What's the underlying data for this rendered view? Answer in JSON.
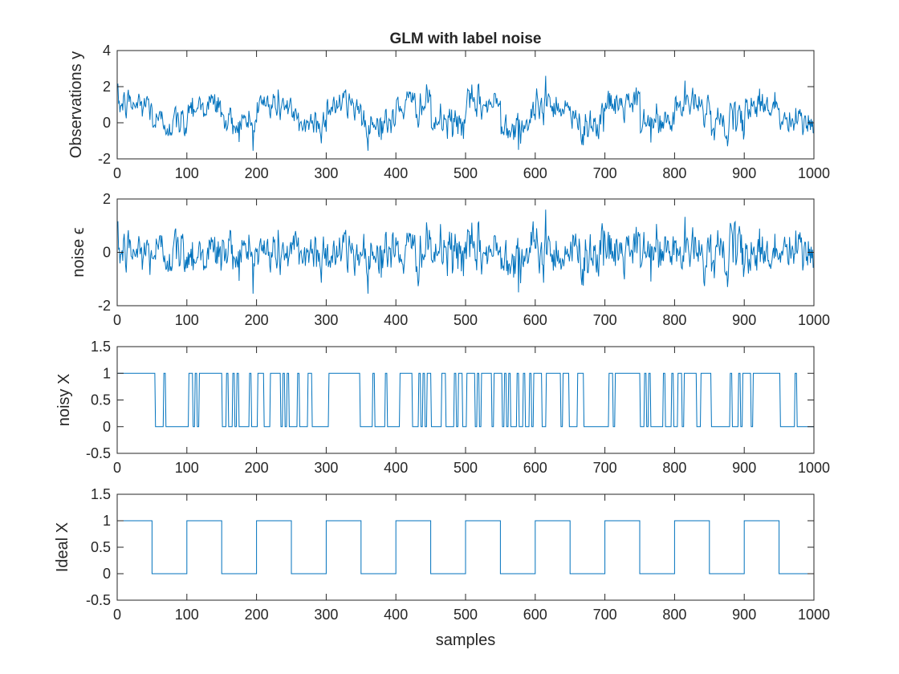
{
  "figure": {
    "title": "GLM with label noise",
    "line_color": "#0072BD"
  },
  "chart_data": [
    {
      "type": "line",
      "name": "observations",
      "ylabel": "Observations y",
      "xlabel": "",
      "xlim": [
        0,
        1000
      ],
      "ylim": [
        -2,
        4
      ],
      "xticks": [
        0,
        100,
        200,
        300,
        400,
        500,
        600,
        700,
        800,
        900,
        1000
      ],
      "xtick_labels": [
        "0",
        "100",
        "200",
        "300",
        "400",
        "500",
        "600",
        "700",
        "800",
        "900",
        "1000"
      ],
      "yticks": [
        -2,
        0,
        2,
        4
      ],
      "ytick_labels": [
        "-2",
        "0",
        "2",
        "4"
      ],
      "grid": false,
      "series": [
        {
          "name": "y",
          "description": "observed signal: ideal X plus noise, 1000 samples, values roughly between -1.5 and 2.6, slow waves of period 100 (peaks near 130, 320, 420, 620, 720, 820, 930)"
        }
      ]
    },
    {
      "type": "line",
      "name": "noise",
      "ylabel": "noise ϵ",
      "xlabel": "",
      "xlim": [
        0,
        1000
      ],
      "ylim": [
        -2,
        2
      ],
      "xticks": [
        0,
        100,
        200,
        300,
        400,
        500,
        600,
        700,
        800,
        900,
        1000
      ],
      "xtick_labels": [
        "0",
        "100",
        "200",
        "300",
        "400",
        "500",
        "600",
        "700",
        "800",
        "900",
        "1000"
      ],
      "yticks": [
        -2,
        0,
        2
      ],
      "ytick_labels": [
        "-2",
        "0",
        "2"
      ],
      "grid": false,
      "series": [
        {
          "name": "epsilon",
          "description": "white noise, 1000 samples, mostly within -1.3 to 1.3, extremes about -1.5 near 575 and 1.6 near 615"
        }
      ]
    },
    {
      "type": "line",
      "name": "noisy-x",
      "ylabel": "noisy X",
      "xlabel": "",
      "xlim": [
        0,
        1000
      ],
      "ylim": [
        -0.5,
        1.5
      ],
      "xticks": [
        0,
        100,
        200,
        300,
        400,
        500,
        600,
        700,
        800,
        900,
        1000
      ],
      "xtick_labels": [
        "0",
        "100",
        "200",
        "300",
        "400",
        "500",
        "600",
        "700",
        "800",
        "900",
        "1000"
      ],
      "yticks": [
        -0.5,
        0,
        0.5,
        1,
        1.5
      ],
      "ytick_labels": [
        "-0.5",
        "0",
        "0.5",
        "1",
        "1.5"
      ],
      "grid": false,
      "series": [
        {
          "name": "noisy X",
          "description": "binary 0/1 design with random label flips, segments of roughly 50 samples, 1000 samples"
        }
      ]
    },
    {
      "type": "line",
      "name": "ideal-x",
      "ylabel": "Ideal X",
      "xlabel": "samples",
      "xlim": [
        0,
        1000
      ],
      "ylim": [
        -0.5,
        1.5
      ],
      "xticks": [
        0,
        100,
        200,
        300,
        400,
        500,
        600,
        700,
        800,
        900,
        1000
      ],
      "xtick_labels": [
        "0",
        "100",
        "200",
        "300",
        "400",
        "500",
        "600",
        "700",
        "800",
        "900",
        "1000"
      ],
      "yticks": [
        -0.5,
        0,
        0.5,
        1,
        1.5
      ],
      "ytick_labels": [
        "-0.5",
        "0",
        "0.5",
        "1",
        "1.5"
      ],
      "grid": false,
      "series": [
        {
          "name": "ideal X",
          "x": [
            0,
            50,
            50,
            100,
            100,
            150,
            150,
            200,
            200,
            250,
            250,
            300,
            300,
            350,
            350,
            400,
            400,
            450,
            450,
            500,
            500,
            550,
            550,
            600,
            600,
            650,
            650,
            700,
            700,
            750,
            750,
            800,
            800,
            850,
            850,
            900,
            900,
            950,
            950,
            1000
          ],
          "values": [
            1,
            1,
            0,
            0,
            1,
            1,
            0,
            0,
            1,
            1,
            0,
            0,
            1,
            1,
            0,
            0,
            1,
            1,
            0,
            0,
            1,
            1,
            0,
            0,
            1,
            1,
            0,
            0,
            1,
            1,
            0,
            0,
            1,
            1,
            0,
            0,
            1,
            1,
            0,
            0
          ]
        }
      ]
    }
  ]
}
